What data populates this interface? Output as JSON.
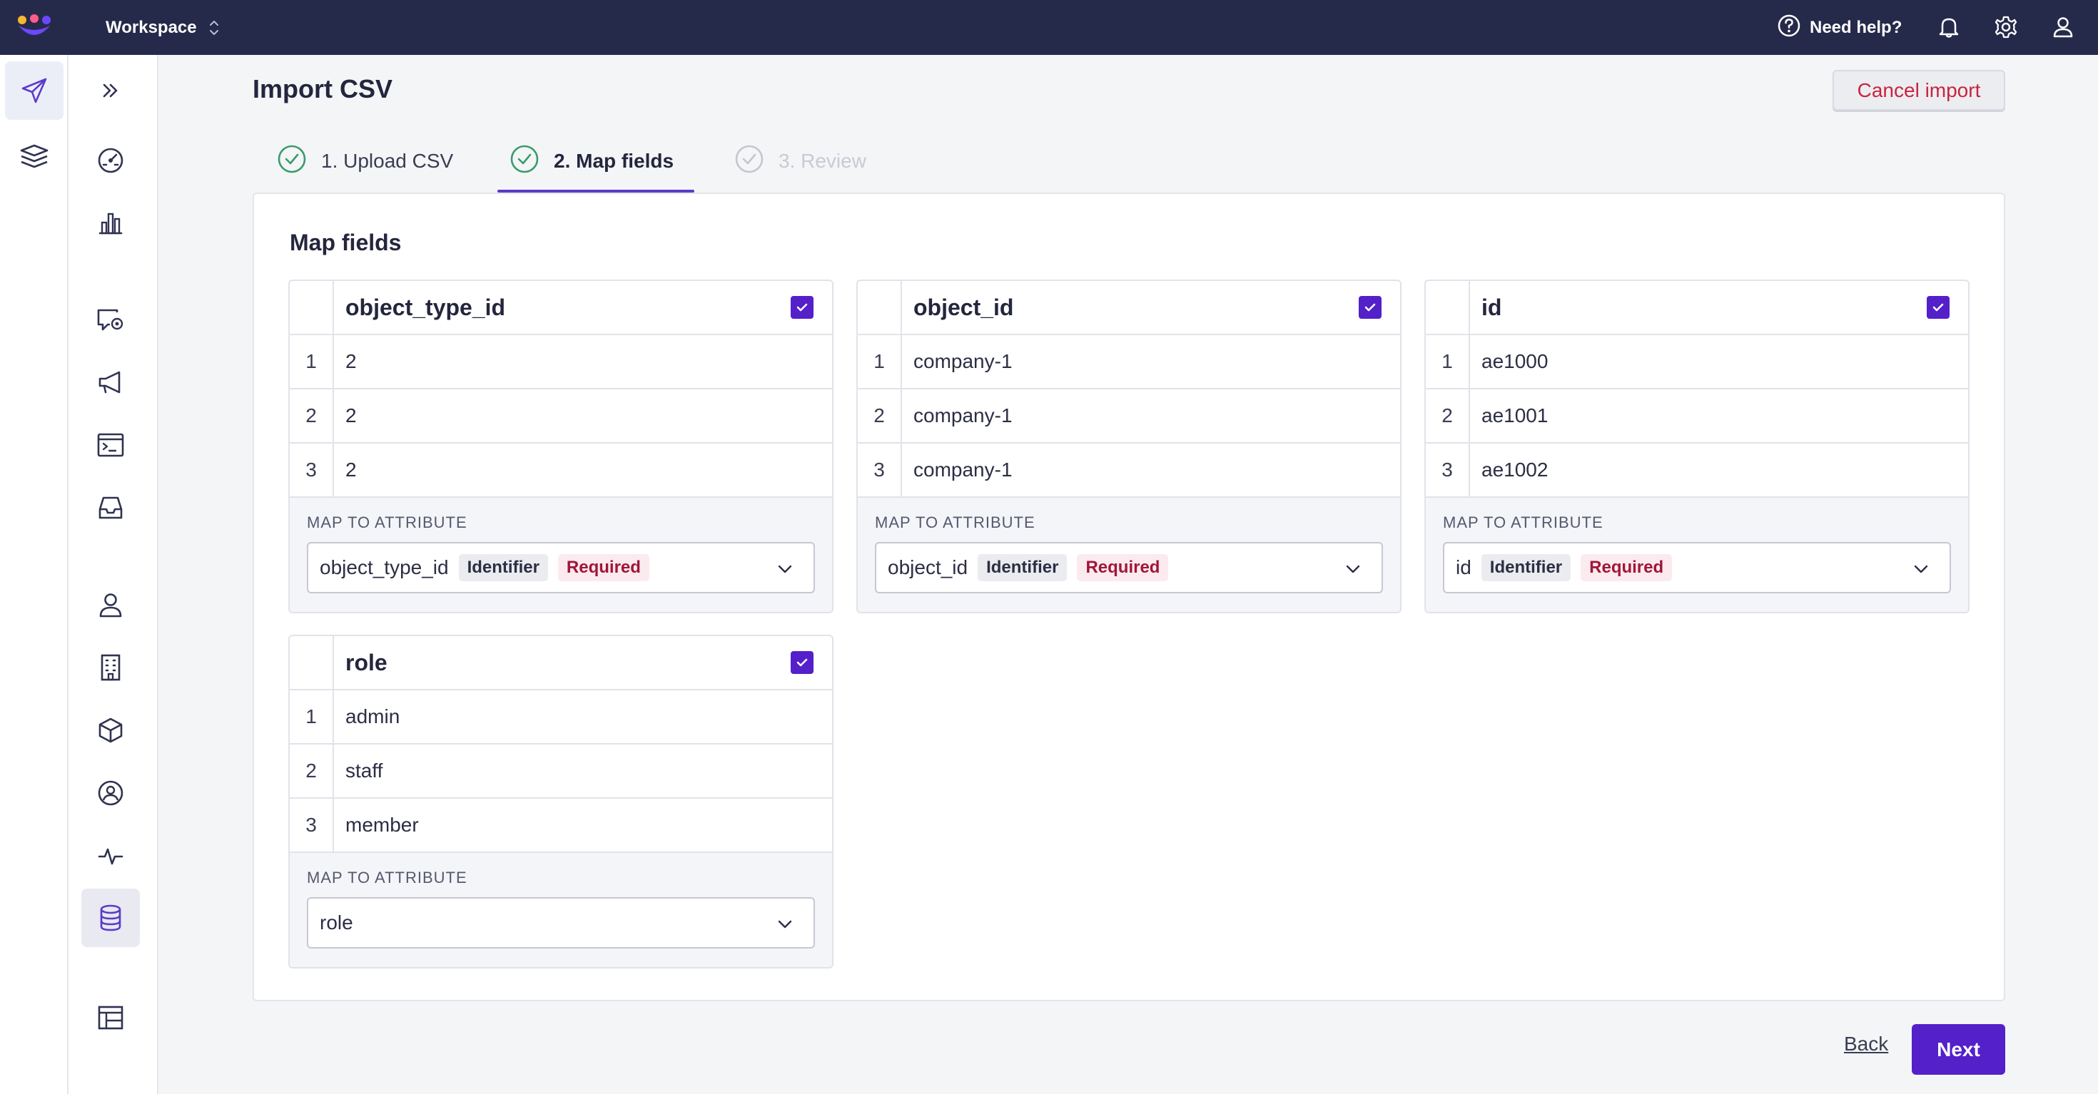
{
  "header": {
    "workspace": "Workspace",
    "help_label": "Need help?",
    "brand_colors": [
      "#f5b82e",
      "#ff5c8a",
      "#6b48ff"
    ]
  },
  "sidebar": {
    "rail1": [
      {
        "icon": "send-icon",
        "active": true
      },
      {
        "icon": "layers-icon",
        "active": false
      }
    ],
    "rail2": [
      {
        "icon": "expand-icon"
      },
      {
        "icon": "dashboard-gauge-icon"
      },
      {
        "icon": "bar-chart-icon"
      },
      {
        "icon": "message-settings-icon"
      },
      {
        "icon": "megaphone-icon"
      },
      {
        "icon": "terminal-icon"
      },
      {
        "icon": "inbox-icon"
      },
      {
        "icon": "person-icon"
      },
      {
        "icon": "building-icon"
      },
      {
        "icon": "cube-icon"
      },
      {
        "icon": "user-circle-icon"
      },
      {
        "icon": "activity-icon"
      },
      {
        "icon": "database-icon",
        "active": true
      },
      {
        "icon": "table-icon"
      }
    ]
  },
  "page": {
    "title": "Import CSV",
    "cancel_label": "Cancel import",
    "steps": [
      {
        "label": "1. Upload CSV",
        "state": "complete"
      },
      {
        "label": "2. Map fields",
        "state": "active"
      },
      {
        "label": "3. Review",
        "state": "disabled"
      }
    ],
    "panel_title": "Map fields",
    "map_label": "MAP TO ATTRIBUTE",
    "back_label": "Back",
    "next_label": "Next"
  },
  "fields": [
    {
      "name": "object_type_id",
      "checked": true,
      "rows": [
        {
          "n": "1",
          "v": "2"
        },
        {
          "n": "2",
          "v": "2"
        },
        {
          "n": "3",
          "v": "2"
        }
      ],
      "attribute": "object_type_id",
      "tags": [
        "Identifier",
        "Required"
      ]
    },
    {
      "name": "object_id",
      "checked": true,
      "rows": [
        {
          "n": "1",
          "v": "company-1"
        },
        {
          "n": "2",
          "v": "company-1"
        },
        {
          "n": "3",
          "v": "company-1"
        }
      ],
      "attribute": "object_id",
      "tags": [
        "Identifier",
        "Required"
      ]
    },
    {
      "name": "id",
      "checked": true,
      "rows": [
        {
          "n": "1",
          "v": "ae1000"
        },
        {
          "n": "2",
          "v": "ae1001"
        },
        {
          "n": "3",
          "v": "ae1002"
        }
      ],
      "attribute": "id",
      "tags": [
        "Identifier",
        "Required"
      ]
    },
    {
      "name": "role",
      "checked": true,
      "rows": [
        {
          "n": "1",
          "v": "admin"
        },
        {
          "n": "2",
          "v": "staff"
        },
        {
          "n": "3",
          "v": "member"
        }
      ],
      "attribute": "role",
      "tags": []
    }
  ]
}
